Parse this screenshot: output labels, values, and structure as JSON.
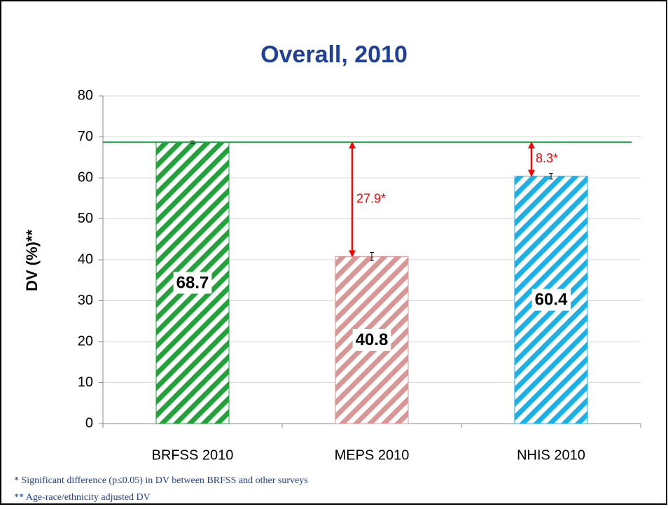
{
  "chart_data": {
    "type": "bar",
    "title": "Overall, 2010",
    "y_label": "DV (%)**",
    "categories": [
      "BRFSS 2010",
      "MEPS 2010",
      "NHIS 2010"
    ],
    "series": [
      {
        "values": [
          68.7,
          40.8,
          60.4
        ],
        "errors": [
          0.3,
          1.0,
          0.7
        ],
        "colors": [
          "#22a33a",
          "#d99694",
          "#1ab0e8"
        ]
      }
    ],
    "ylim": [
      0,
      80
    ],
    "yticks": [
      0,
      10,
      20,
      30,
      40,
      50,
      60,
      70,
      80
    ],
    "grid": true,
    "reference_color": "#1fa34a",
    "annotation_color": "#ff0000",
    "annotations": [
      {
        "text": "27.9*"
      },
      {
        "text": "8.3*"
      }
    ],
    "notes": [
      "* Significant difference (p≤0.05) in DV between BRFSS and other surveys",
      "** Age-race/ethnicity adjusted DV"
    ]
  }
}
